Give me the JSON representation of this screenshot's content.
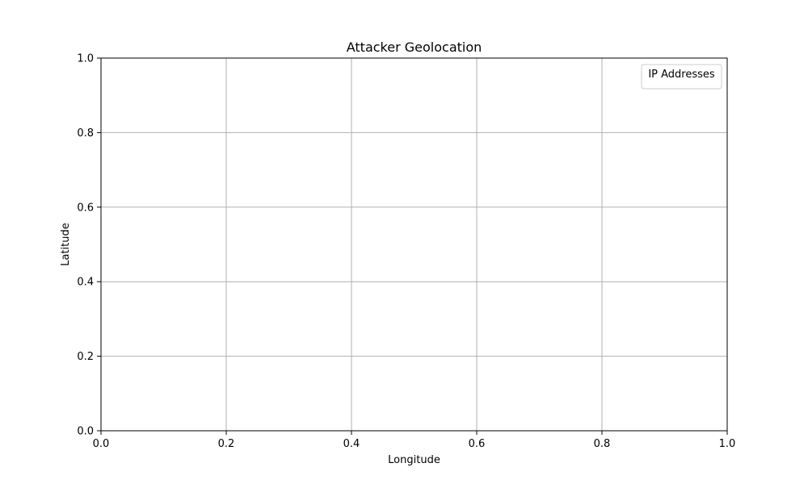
{
  "chart_data": {
    "type": "scatter",
    "title": "Attacker Geolocation",
    "xlabel": "Longitude",
    "ylabel": "Latitude",
    "xlim": [
      0.0,
      1.0
    ],
    "ylim": [
      0.0,
      1.0
    ],
    "x_ticks": [
      "0.0",
      "0.2",
      "0.4",
      "0.6",
      "0.8",
      "1.0"
    ],
    "y_ticks": [
      "0.0",
      "0.2",
      "0.4",
      "0.6",
      "0.8",
      "1.0"
    ],
    "grid": true,
    "legend": {
      "title": "IP Addresses",
      "placement": "top-right",
      "entries": []
    },
    "series": [],
    "colors": {
      "grid": "#b0b0b0",
      "axes": "#000000",
      "legend_border": "#cccccc"
    }
  }
}
